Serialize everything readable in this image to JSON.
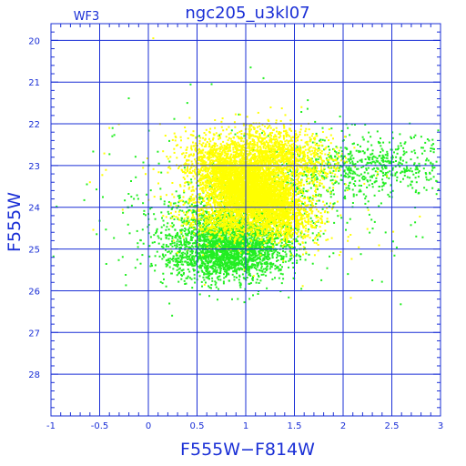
{
  "chart_data": {
    "type": "scatter",
    "title": "ngc205_u3kl07",
    "subtitle": "WF3",
    "xlabel": "F555W−F814W",
    "ylabel": "F555W",
    "xlim": [
      -1,
      3
    ],
    "ylim": [
      29,
      19.6
    ],
    "y_inverted": true,
    "grid": true,
    "x_ticks": [
      -1,
      -0.5,
      0,
      0.5,
      1,
      1.5,
      2,
      2.5,
      3
    ],
    "x_tick_labels": [
      "-1",
      "-0.5",
      "0",
      "0.5",
      "1",
      "1.5",
      "2",
      "2.5",
      "3"
    ],
    "y_ticks": [
      20,
      21,
      22,
      23,
      24,
      25,
      26,
      27,
      28
    ],
    "y_tick_labels": [
      "20",
      "21",
      "22",
      "23",
      "24",
      "25",
      "26",
      "27",
      "28"
    ],
    "colors": {
      "axes": "#1a2fd6",
      "green_stars": "#22ee22",
      "yellow_stars": "#ffff00"
    },
    "series": [
      {
        "color": "#22ee22",
        "components": [
          {
            "n": 2200,
            "cx": 0.85,
            "cy": 24.75,
            "sx": 0.32,
            "sy": 0.45,
            "rho": 0.05
          },
          {
            "n": 700,
            "cx": 0.75,
            "cy": 25.2,
            "sx": 0.3,
            "sy": 0.28,
            "rho": 0.0
          },
          {
            "n": 550,
            "cx": 1.9,
            "cy": 23.1,
            "sx": 0.45,
            "sy": 0.45,
            "rho": -0.3
          },
          {
            "n": 200,
            "cx": 2.6,
            "cy": 23.0,
            "sx": 0.25,
            "sy": 0.3,
            "rho": 0.0
          },
          {
            "n": 260,
            "cx": 1.0,
            "cy": 24.1,
            "sx": 0.9,
            "sy": 1.1,
            "rho": 0.1
          }
        ],
        "points": [
          [
            1.05,
            20.65
          ],
          [
            0.65,
            21.05
          ],
          [
            0.4,
            21.5
          ],
          [
            2.15,
            22.5
          ],
          [
            2.4,
            23.5
          ],
          [
            1.9,
            25.1
          ],
          [
            2.05,
            25.6
          ],
          [
            2.3,
            25.75
          ],
          [
            2.9,
            22.95
          ],
          [
            2.75,
            24.7
          ]
        ]
      },
      {
        "color": "#ffff00",
        "components": [
          {
            "n": 5200,
            "cx": 1.05,
            "cy": 23.6,
            "sx": 0.28,
            "sy": 0.5,
            "rho": 0.6
          },
          {
            "n": 1300,
            "cx": 1.35,
            "cy": 22.75,
            "sx": 0.28,
            "sy": 0.35,
            "rho": 0.3
          },
          {
            "n": 600,
            "cx": 0.75,
            "cy": 24.3,
            "sx": 0.22,
            "sy": 0.3,
            "rho": 0.3
          },
          {
            "n": 120,
            "cx": 0.9,
            "cy": 23.6,
            "sx": 0.8,
            "sy": 0.9,
            "rho": 0.1
          }
        ],
        "points": [
          [
            0.05,
            19.95
          ],
          [
            -0.4,
            22.1
          ],
          [
            -0.6,
            23.4
          ],
          [
            2.5,
            25.05
          ],
          [
            2.45,
            23.25
          ]
        ]
      }
    ]
  }
}
